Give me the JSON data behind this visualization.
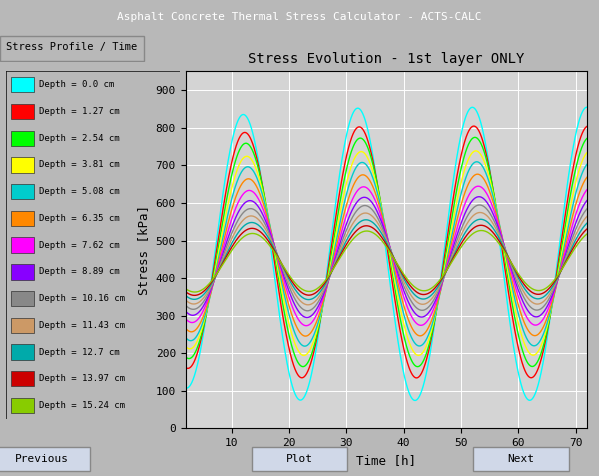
{
  "title": "Stress Evolution - 1st layer ONLY",
  "xlabel": "Time [h]",
  "ylabel": "Stress [kPa]",
  "xlim": [
    2,
    72
  ],
  "ylim": [
    0,
    950
  ],
  "yticks": [
    0,
    100,
    200,
    300,
    400,
    500,
    600,
    700,
    800,
    900
  ],
  "xticks": [
    10,
    20,
    30,
    40,
    50,
    60,
    70
  ],
  "plot_bg_color": "#d4d4d4",
  "grid_color": "#ffffff",
  "fig_bg": "#b8b8b8",
  "win_title": "Asphalt Concrete Thermal Stress Calculator - ACTS-CALC",
  "tab_label": "Stress Profile / Time",
  "layers": [
    {
      "depth": "0.0",
      "color": "#00ffff",
      "amp": 390,
      "mean": 450,
      "phase_lag": 0.0
    },
    {
      "depth": "1.27",
      "color": "#ff0000",
      "amp": 335,
      "mean": 455,
      "phase_lag": 0.08
    },
    {
      "depth": "2.54",
      "color": "#00ff00",
      "amp": 305,
      "mean": 455,
      "phase_lag": 0.14
    },
    {
      "depth": "3.81",
      "color": "#ffff00",
      "amp": 272,
      "mean": 452,
      "phase_lag": 0.19
    },
    {
      "depth": "5.08",
      "color": "#00cccc",
      "amp": 245,
      "mean": 450,
      "phase_lag": 0.24
    },
    {
      "depth": "6.35",
      "color": "#ff8800",
      "amp": 215,
      "mean": 447,
      "phase_lag": 0.28
    },
    {
      "depth": "7.62",
      "color": "#ff00ff",
      "amp": 185,
      "mean": 445,
      "phase_lag": 0.32
    },
    {
      "depth": "8.89",
      "color": "#8800ff",
      "amp": 160,
      "mean": 442,
      "phase_lag": 0.36
    },
    {
      "depth": "10.16",
      "color": "#888888",
      "amp": 140,
      "mean": 440,
      "phase_lag": 0.39
    },
    {
      "depth": "11.43",
      "color": "#cc9966",
      "amp": 122,
      "mean": 438,
      "phase_lag": 0.42
    },
    {
      "depth": "12.7",
      "color": "#00aaaa",
      "amp": 106,
      "mean": 436,
      "phase_lag": 0.45
    },
    {
      "depth": "13.97",
      "color": "#cc0000",
      "amp": 92,
      "mean": 434,
      "phase_lag": 0.47
    },
    {
      "depth": "15.24",
      "color": "#88cc00",
      "amp": 80,
      "mean": 432,
      "phase_lag": 0.49
    }
  ],
  "period": 20.0,
  "t_start": 2,
  "t_end": 72,
  "n_points": 3000
}
